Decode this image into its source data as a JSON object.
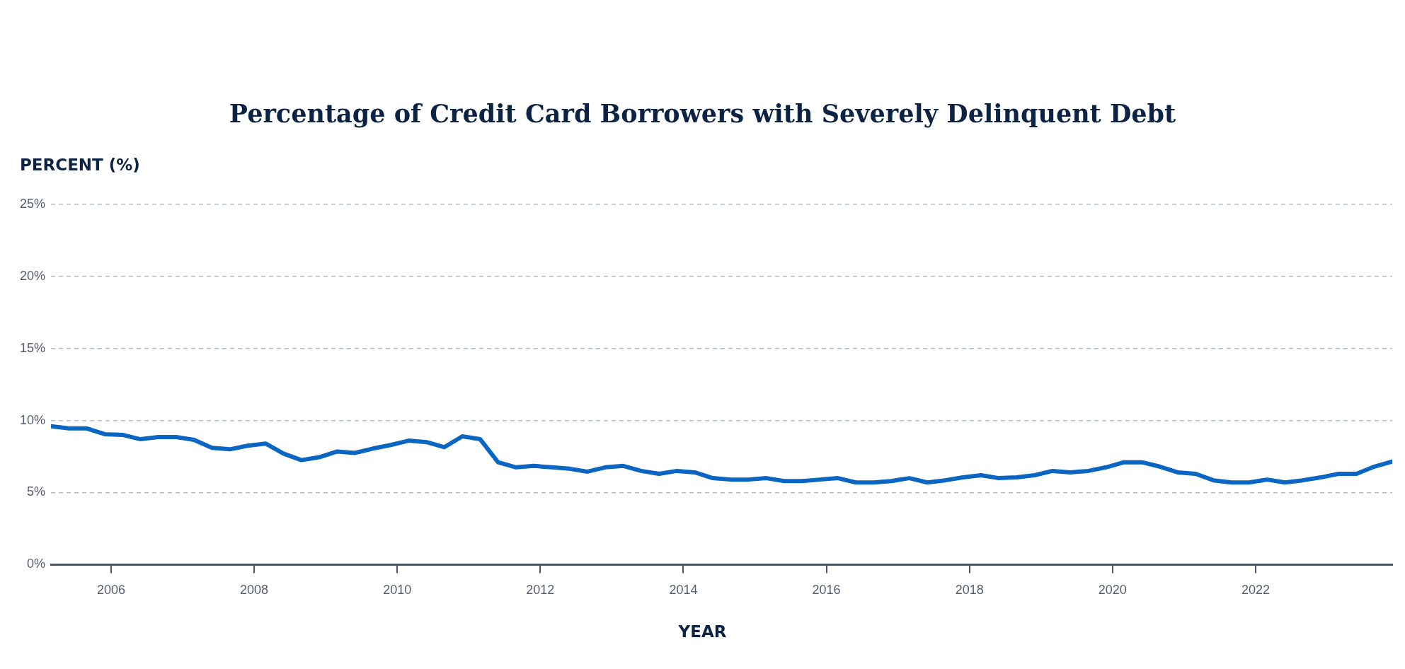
{
  "chart_data": {
    "type": "line",
    "title": "Percentage of Credit Card Borrowers with Severely Delinquent Debt",
    "ylabel": "PERCENT (%)",
    "xlabel": "YEAR",
    "x": [
      2005.16,
      2005.41,
      2005.66,
      2005.91,
      2006.16,
      2006.41,
      2006.66,
      2006.91,
      2007.16,
      2007.41,
      2007.66,
      2007.91,
      2008.16,
      2008.41,
      2008.66,
      2008.91,
      2009.16,
      2009.41,
      2009.66,
      2009.91,
      2010.16,
      2010.41,
      2010.66,
      2010.91,
      2011.16,
      2011.41,
      2011.66,
      2011.91,
      2012.16,
      2012.41,
      2012.66,
      2012.91,
      2013.16,
      2013.41,
      2013.66,
      2013.91,
      2014.16,
      2014.41,
      2014.66,
      2014.91,
      2015.16,
      2015.41,
      2015.66,
      2015.91,
      2016.16,
      2016.41,
      2016.66,
      2016.91,
      2017.16,
      2017.41,
      2017.66,
      2017.91,
      2018.16,
      2018.41,
      2018.66,
      2018.91,
      2019.16,
      2019.41,
      2019.66,
      2019.91,
      2020.16,
      2020.41,
      2020.66,
      2020.91,
      2021.16,
      2021.41,
      2021.66,
      2021.91,
      2022.16,
      2022.41,
      2022.66,
      2022.91,
      2023.16,
      2023.41,
      2023.66,
      2023.91
    ],
    "series": [
      {
        "color": "#0a66c2",
        "values": [
          9.6,
          9.45,
          9.45,
          9.05,
          9.0,
          8.7,
          8.85,
          8.85,
          8.65,
          8.1,
          8.0,
          8.25,
          8.4,
          7.7,
          7.25,
          7.45,
          7.85,
          7.75,
          8.05,
          8.3,
          8.6,
          8.5,
          8.15,
          8.9,
          8.7,
          7.1,
          6.75,
          6.85,
          6.75,
          6.65,
          6.45,
          6.75,
          6.85,
          6.5,
          6.3,
          6.5,
          6.4,
          6.0,
          5.9,
          5.9,
          6.0,
          5.8,
          5.8,
          5.9,
          6.0,
          5.7,
          5.7,
          5.8,
          6.0,
          5.7,
          5.85,
          6.05,
          6.2,
          6.0,
          6.05,
          6.2,
          6.5,
          6.4,
          6.5,
          6.75,
          7.1,
          7.1,
          6.8,
          6.4,
          6.3,
          5.85,
          5.7,
          5.7,
          5.9,
          5.7,
          5.85,
          6.05,
          6.3,
          6.3,
          6.8,
          7.15
        ]
      }
    ],
    "xlim": [
      2005.16,
      2023.91
    ],
    "xticks": [
      2006,
      2008,
      2010,
      2012,
      2014,
      2016,
      2018,
      2020,
      2022
    ],
    "ylim": [
      0,
      25
    ],
    "yticks": [
      {
        "value": 0,
        "label": "0%"
      },
      {
        "value": 5,
        "label": "5%"
      },
      {
        "value": 10,
        "label": "10%"
      },
      {
        "value": 15,
        "label": "15%"
      },
      {
        "value": 20,
        "label": "20%"
      },
      {
        "value": 25,
        "label": "25%"
      }
    ],
    "grid": "y",
    "legend": false,
    "marker": "none",
    "line_style": "solid"
  }
}
